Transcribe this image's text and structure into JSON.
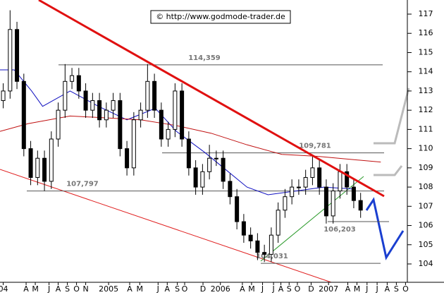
{
  "chart_data": {
    "type": "candlestick",
    "source": "© http://www.godmode-trader.de",
    "xlim": [
      0.15,
      44.6
    ],
    "ylim": [
      103.3,
      117.7
    ],
    "yticks": [
      104,
      105,
      106,
      107,
      108,
      109,
      110,
      111,
      112,
      113,
      114,
      115,
      116,
      117
    ],
    "xticks": [
      {
        "value": 0.5,
        "label": "04"
      },
      {
        "value": 3,
        "label": "A"
      },
      {
        "value": 4,
        "label": "M"
      },
      {
        "value": 5.5,
        "label": "J"
      },
      {
        "value": 6.5,
        "label": "A"
      },
      {
        "value": 7.5,
        "label": "S"
      },
      {
        "value": 8.5,
        "label": "O"
      },
      {
        "value": 9.5,
        "label": "N"
      },
      {
        "value": 12,
        "label": "2005"
      },
      {
        "value": 14.3,
        "label": "A"
      },
      {
        "value": 15.4,
        "label": "M"
      },
      {
        "value": 17.4,
        "label": "J"
      },
      {
        "value": 18.4,
        "label": "A"
      },
      {
        "value": 19.5,
        "label": "S"
      },
      {
        "value": 20.3,
        "label": "O"
      },
      {
        "value": 22.3,
        "label": "D"
      },
      {
        "value": 24.2,
        "label": "2006"
      },
      {
        "value": 26.6,
        "label": "A"
      },
      {
        "value": 27.6,
        "label": "M"
      },
      {
        "value": 28.8,
        "label": "J"
      },
      {
        "value": 30,
        "label": "J"
      },
      {
        "value": 30.8,
        "label": "A"
      },
      {
        "value": 31.7,
        "label": "S"
      },
      {
        "value": 32.6,
        "label": "O"
      },
      {
        "value": 34.1,
        "label": "D"
      },
      {
        "value": 36,
        "label": "2007"
      },
      {
        "value": 38.1,
        "label": "A"
      },
      {
        "value": 39.1,
        "label": "M"
      },
      {
        "value": 40.2,
        "label": "J"
      },
      {
        "value": 41.3,
        "label": "J"
      },
      {
        "value": 42.4,
        "label": "A"
      },
      {
        "value": 43.4,
        "label": "S"
      },
      {
        "value": 44.4,
        "label": "O"
      }
    ],
    "x": [
      0.5,
      1.25,
      2,
      2.75,
      3.5,
      4.25,
      5,
      5.75,
      6.5,
      7.25,
      8,
      8.75,
      9.5,
      10.25,
      11,
      11.75,
      12.5,
      13.25,
      14,
      14.75,
      15.5,
      16.25,
      17,
      17.75,
      18.5,
      19.25,
      20,
      20.75,
      21.5,
      22.25,
      23,
      23.75,
      24.5,
      25.25,
      26,
      26.75,
      27.5,
      28.25,
      29,
      29.75,
      30.5,
      31.25,
      32,
      32.75,
      33.5,
      34.25,
      35,
      35.75,
      36.5,
      37.25,
      38,
      38.75,
      39.5
    ],
    "open": [
      112.5,
      113,
      116.2,
      113.5,
      110,
      108.5,
      109.5,
      108.3,
      110.5,
      112,
      113.5,
      113.8,
      113,
      112,
      112.5,
      111.5,
      112,
      112.5,
      110,
      109,
      111.5,
      112,
      113.5,
      112,
      110.5,
      111,
      113,
      110.5,
      109,
      108,
      108.8,
      109.5,
      109.5,
      108.3,
      107.5,
      106.2,
      105.5,
      105.2,
      104.6,
      104.5,
      105.5,
      106.8,
      107.5,
      108,
      108,
      108.5,
      109,
      108,
      106.5,
      107.8,
      108.8,
      108,
      107.3
    ],
    "high": [
      113.4,
      117.2,
      116.6,
      113.9,
      110.4,
      109.9,
      109.9,
      110.9,
      112.4,
      114.4,
      114.2,
      114.2,
      113.4,
      112.9,
      112.9,
      112.4,
      112.9,
      112.9,
      110.4,
      111.9,
      112.4,
      114.4,
      113.9,
      112.4,
      111.4,
      113.4,
      113.4,
      110.9,
      109.4,
      109.2,
      110.2,
      109.9,
      109.9,
      108.7,
      107.9,
      106.6,
      105.9,
      105.6,
      105,
      105.9,
      107.2,
      107.9,
      108.4,
      108.4,
      108.9,
      109.6,
      109.4,
      108.4,
      108.2,
      109.2,
      109.2,
      108.4,
      107.7
    ],
    "low": [
      112.1,
      112.6,
      113.1,
      109.6,
      108.1,
      108.1,
      107.8,
      107.9,
      110.1,
      111.6,
      113.1,
      112.6,
      111.6,
      111.6,
      111.1,
      111.1,
      111.6,
      109.6,
      108.6,
      108.6,
      111.1,
      111.6,
      111.6,
      110.1,
      110.1,
      110.6,
      110.1,
      108.6,
      107.6,
      107.6,
      108.4,
      109.1,
      107.9,
      107.1,
      105.8,
      105.1,
      104.8,
      104.2,
      104.1,
      104.1,
      105.1,
      106.4,
      107.1,
      107.6,
      107.6,
      108.1,
      107.6,
      106.1,
      106.1,
      107.4,
      107.6,
      106.9,
      106.4
    ],
    "close": [
      113,
      116.2,
      113.5,
      110,
      108.5,
      109.5,
      108.3,
      110.5,
      112,
      113.5,
      113.8,
      113,
      112,
      112.5,
      111.5,
      112,
      112.5,
      110,
      109,
      111.5,
      112,
      113.5,
      112,
      110.5,
      111,
      113,
      110.5,
      109,
      108,
      108.8,
      109.5,
      109.5,
      108.3,
      107.5,
      106.2,
      105.5,
      105.2,
      104.6,
      104.5,
      105.5,
      106.8,
      107.5,
      108,
      108,
      108.5,
      109,
      108,
      106.5,
      107.8,
      108.8,
      108,
      107.3,
      106.8
    ],
    "averages": [
      {
        "color": "#1010c0",
        "x": [
          0.15,
          1.7,
          3.6,
          4.8,
          6.3,
          7.8,
          10.9,
          14,
          17.1,
          19.4,
          22.5,
          24.8,
          27.1,
          29.4,
          32.5,
          35.5,
          38.6
        ],
        "values": [
          114.1,
          114.1,
          113,
          112.2,
          112.6,
          113,
          112.2,
          111.5,
          112.1,
          110.9,
          109.8,
          108.9,
          108,
          107.6,
          107.8,
          108,
          107.9
        ]
      },
      {
        "color": "#c01010",
        "x": [
          0.15,
          3.2,
          7.8,
          11.7,
          15.5,
          19.4,
          23.2,
          27.1,
          30.9,
          34.8,
          41.7
        ],
        "values": [
          110.9,
          111.3,
          111.7,
          111.6,
          111.5,
          111.2,
          110.8,
          110.2,
          109.7,
          109.6,
          109.3
        ]
      }
    ],
    "levels": [
      {
        "value": 114.359,
        "label": "114,359"
      },
      {
        "value": 109.781,
        "label": "109,781"
      },
      {
        "value": 107.797,
        "label": "107,797"
      },
      {
        "value": 106.203,
        "label": "106,203"
      },
      {
        "value": 104.031,
        "label": "104,031"
      }
    ]
  }
}
